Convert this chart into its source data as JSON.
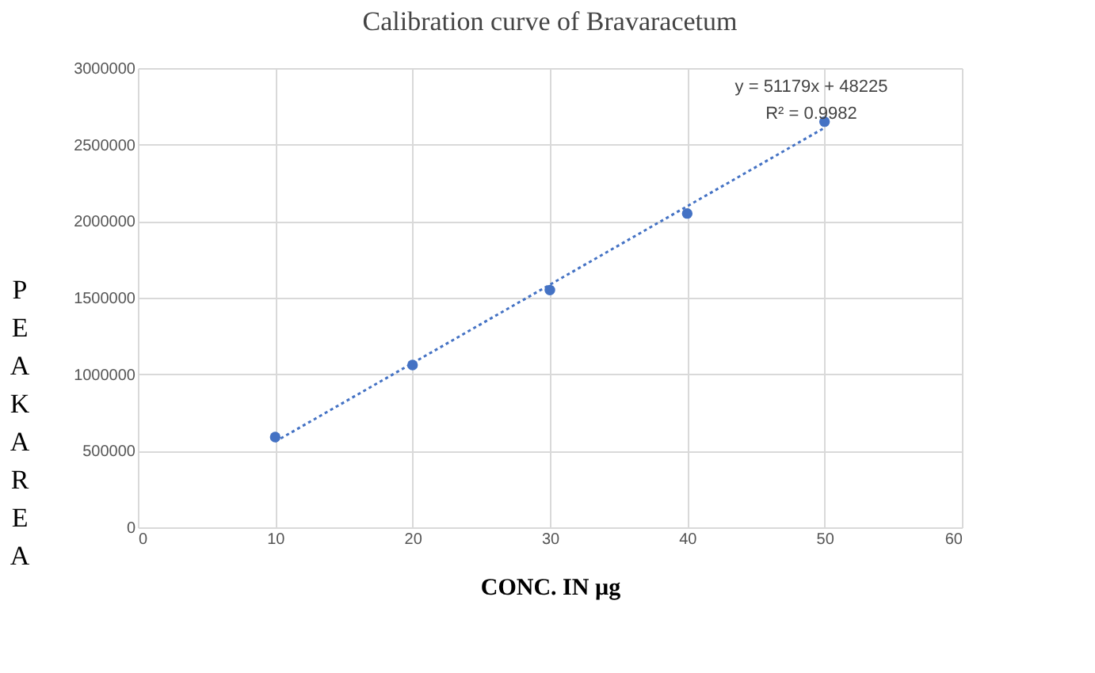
{
  "chart_data": {
    "type": "scatter",
    "title": "Calibration curve of Bravaracetum",
    "xlabel": "CONC. IN µg",
    "ylabel": "PEAK AREA",
    "x": [
      10,
      20,
      30,
      40,
      50
    ],
    "series": [
      {
        "color": "#4472c4",
        "values": [
          590000,
          1060000,
          1550000,
          2050000,
          2650000
        ],
        "marker": "circle"
      },
      {
        "type": "line",
        "color": "#4472c4",
        "x": [
          10,
          50
        ],
        "values": [
          560000,
          2610000
        ],
        "line_style": "dotted",
        "marker": "none"
      }
    ],
    "annotations": [
      "y = 51179x + 48225",
      "R² = 0.9982"
    ],
    "xlim": [
      0,
      60
    ],
    "xticks": [
      0,
      10,
      20,
      30,
      40,
      50,
      60
    ],
    "ylim": [
      0,
      3000000
    ],
    "yticks": [
      0,
      500000,
      1000000,
      1500000,
      2000000,
      2500000,
      3000000
    ],
    "grid": true
  }
}
